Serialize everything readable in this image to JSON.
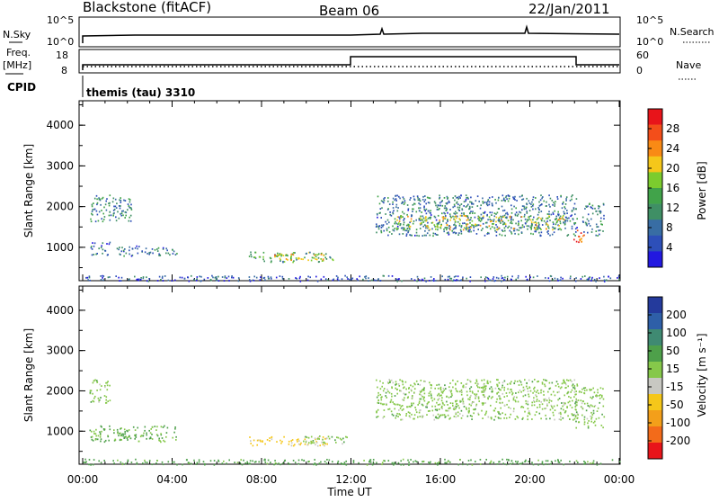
{
  "header": {
    "station": "Blackstone (fitACF)",
    "beam": "Beam 06",
    "date": "22/Jan/2011"
  },
  "top_panels": {
    "nsky_label": "N.Sky",
    "nsky_ticks": [
      "10^5",
      "10^0"
    ],
    "nsearch_label": "N.Search",
    "nsearch_ticks": [
      "10^5",
      "10^0"
    ],
    "freq_label_1": "Freq.",
    "freq_label_2": "[MHz]",
    "freq_ticks": [
      "18",
      "8"
    ],
    "nave_label": "Nave",
    "nave_ticks": [
      "60",
      "0"
    ],
    "cpid_label": "CPID",
    "cpid_value": "themis (tau) 3310"
  },
  "colorbars": {
    "power": {
      "label": "Power [dB]",
      "ticks": [
        "28",
        "24",
        "20",
        "16",
        "12",
        "8",
        "4"
      ],
      "colors": [
        "#e8141a",
        "#f34e1a",
        "#f98a15",
        "#f5c71a",
        "#7ccc2e",
        "#41a34a",
        "#3f8f65",
        "#386da4",
        "#2d4fb9",
        "#2218e0"
      ]
    },
    "velocity": {
      "label": "Velocity [m s⁻¹]",
      "ticks": [
        "200",
        "100",
        "50",
        "15",
        "-15",
        "-50",
        "-100",
        "-200"
      ],
      "colors": [
        "#243a9c",
        "#2e5fa8",
        "#3f8a72",
        "#4ea04a",
        "#86c84a",
        "#c8c8c2",
        "#f5c71a",
        "#f39f1a",
        "#f36b1a",
        "#e8141a"
      ]
    }
  },
  "chart_data": [
    {
      "type": "heatmap",
      "title": "",
      "xlabel": "Time UT",
      "ylabel": "Slant Range [km]",
      "xlim": [
        "00:00",
        "24:00"
      ],
      "ylim": [
        180,
        4600
      ],
      "x_ticks": [
        "00:00",
        "04:00",
        "08:00",
        "12:00",
        "16:00",
        "20:00",
        "00:00"
      ],
      "y_ticks": [
        "1000",
        "2000",
        "3000",
        "4000"
      ],
      "quantity": "Power [dB]",
      "colorbar_range": [
        0,
        32
      ],
      "echo_regions": [
        {
          "t_start": 0.3,
          "t_end": 2.2,
          "r_min": 1650,
          "r_max": 2300,
          "value": 10
        },
        {
          "t_start": 0.3,
          "t_end": 1.2,
          "r_min": 800,
          "r_max": 1150,
          "value": 8
        },
        {
          "t_start": 1.5,
          "t_end": 4.2,
          "r_min": 800,
          "r_max": 1050,
          "value": 8
        },
        {
          "t_start": 7.4,
          "t_end": 11.2,
          "r_min": 650,
          "r_max": 900,
          "value": 14
        },
        {
          "t_start": 8.5,
          "t_end": 10.8,
          "r_min": 700,
          "r_max": 850,
          "value": 20
        },
        {
          "t_start": 0.0,
          "t_end": 24.0,
          "r_min": 180,
          "r_max": 320,
          "value": 6
        },
        {
          "t_start": 13.1,
          "t_end": 22.1,
          "r_min": 1300,
          "r_max": 2300,
          "value": 9
        },
        {
          "t_start": 14.0,
          "t_end": 21.5,
          "r_min": 1450,
          "r_max": 1800,
          "value": 18
        },
        {
          "t_start": 21.9,
          "t_end": 22.4,
          "r_min": 1100,
          "r_max": 1450,
          "value": 26
        },
        {
          "t_start": 22.3,
          "t_end": 23.3,
          "r_min": 1300,
          "r_max": 2100,
          "value": 10
        }
      ]
    },
    {
      "type": "heatmap",
      "title": "",
      "xlabel": "Time UT",
      "ylabel": "Slant Range [km]",
      "xlim": [
        "00:00",
        "24:00"
      ],
      "ylim": [
        180,
        4600
      ],
      "x_ticks": [
        "00:00",
        "04:00",
        "08:00",
        "12:00",
        "16:00",
        "20:00",
        "00:00"
      ],
      "y_ticks": [
        "1000",
        "2000",
        "3000",
        "4000"
      ],
      "quantity": "Velocity [m s⁻¹]",
      "colorbar_range": [
        -250,
        250
      ],
      "echo_regions": [
        {
          "t_start": 0.3,
          "t_end": 1.2,
          "r_min": 1700,
          "r_max": 2300,
          "value": 0
        },
        {
          "t_start": 0.3,
          "t_end": 4.2,
          "r_min": 750,
          "r_max": 1150,
          "value": 20
        },
        {
          "t_start": 7.4,
          "t_end": 11.0,
          "r_min": 650,
          "r_max": 880,
          "value": -60
        },
        {
          "t_start": 9.8,
          "t_end": 11.8,
          "r_min": 700,
          "r_max": 900,
          "value": 0
        },
        {
          "t_start": 0.0,
          "t_end": 24.0,
          "r_min": 180,
          "r_max": 320,
          "value": 30
        },
        {
          "t_start": 13.1,
          "t_end": 22.1,
          "r_min": 1300,
          "r_max": 2300,
          "value": 0
        },
        {
          "t_start": 22.0,
          "t_end": 23.3,
          "r_min": 1100,
          "r_max": 2100,
          "value": 0
        }
      ]
    }
  ]
}
